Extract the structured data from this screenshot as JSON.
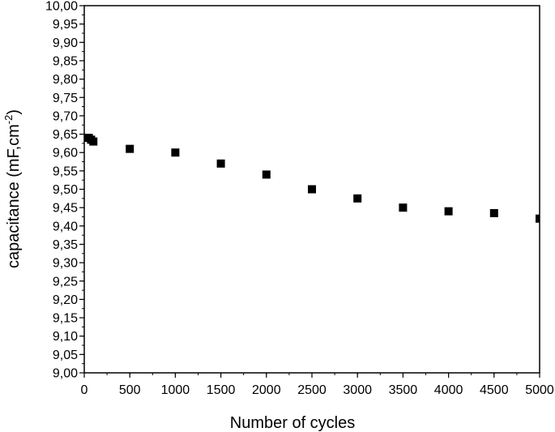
{
  "chart_data": {
    "type": "scatter",
    "title": "",
    "xlabel": "Number of cycles",
    "ylabel_main": "capacitance (mF,cm",
    "ylabel_sup": "-2",
    "ylabel_end": ")",
    "xlim": [
      0,
      5000
    ],
    "ylim": [
      9.0,
      10.0
    ],
    "x_ticks": [
      {
        "value": 0,
        "label": "0"
      },
      {
        "value": 500,
        "label": "500"
      },
      {
        "value": 1000,
        "label": "1000"
      },
      {
        "value": 1500,
        "label": "1500"
      },
      {
        "value": 2000,
        "label": "2000"
      },
      {
        "value": 2500,
        "label": "2500"
      },
      {
        "value": 3000,
        "label": "3000"
      },
      {
        "value": 3500,
        "label": "3500"
      },
      {
        "value": 4000,
        "label": "4000"
      },
      {
        "value": 4500,
        "label": "4500"
      },
      {
        "value": 5000,
        "label": "5000"
      }
    ],
    "y_ticks": [
      {
        "value": 9.0,
        "label": "9,00"
      },
      {
        "value": 9.05,
        "label": "9,05"
      },
      {
        "value": 9.1,
        "label": "9,10"
      },
      {
        "value": 9.15,
        "label": "9,15"
      },
      {
        "value": 9.2,
        "label": "9,20"
      },
      {
        "value": 9.25,
        "label": "9,25"
      },
      {
        "value": 9.3,
        "label": "9,30"
      },
      {
        "value": 9.35,
        "label": "9,35"
      },
      {
        "value": 9.4,
        "label": "9,40"
      },
      {
        "value": 9.45,
        "label": "9,45"
      },
      {
        "value": 9.5,
        "label": "9,50"
      },
      {
        "value": 9.55,
        "label": "9,55"
      },
      {
        "value": 9.6,
        "label": "9,60"
      },
      {
        "value": 9.65,
        "label": "9,65"
      },
      {
        "value": 9.7,
        "label": "9,70"
      },
      {
        "value": 9.75,
        "label": "9,75"
      },
      {
        "value": 9.8,
        "label": "9,80"
      },
      {
        "value": 9.85,
        "label": "9,85"
      },
      {
        "value": 9.9,
        "label": "9,90"
      },
      {
        "value": 9.95,
        "label": "9,95"
      },
      {
        "value": 10.0,
        "label": "10,00"
      }
    ],
    "x_minor_step": 250,
    "y_minor_step": 0.025,
    "grid": false,
    "series": [
      {
        "marker": "square",
        "color": "#000000",
        "points": [
          {
            "x": 10,
            "y": 9.64
          },
          {
            "x": 50,
            "y": 9.64
          },
          {
            "x": 75,
            "y": 9.635
          },
          {
            "x": 100,
            "y": 9.63
          },
          {
            "x": 500,
            "y": 9.61
          },
          {
            "x": 1000,
            "y": 9.6
          },
          {
            "x": 1500,
            "y": 9.57
          },
          {
            "x": 2000,
            "y": 9.54
          },
          {
            "x": 2500,
            "y": 9.5
          },
          {
            "x": 3000,
            "y": 9.475
          },
          {
            "x": 3500,
            "y": 9.45
          },
          {
            "x": 4000,
            "y": 9.44
          },
          {
            "x": 4500,
            "y": 9.435
          },
          {
            "x": 5000,
            "y": 9.42
          }
        ]
      }
    ]
  }
}
